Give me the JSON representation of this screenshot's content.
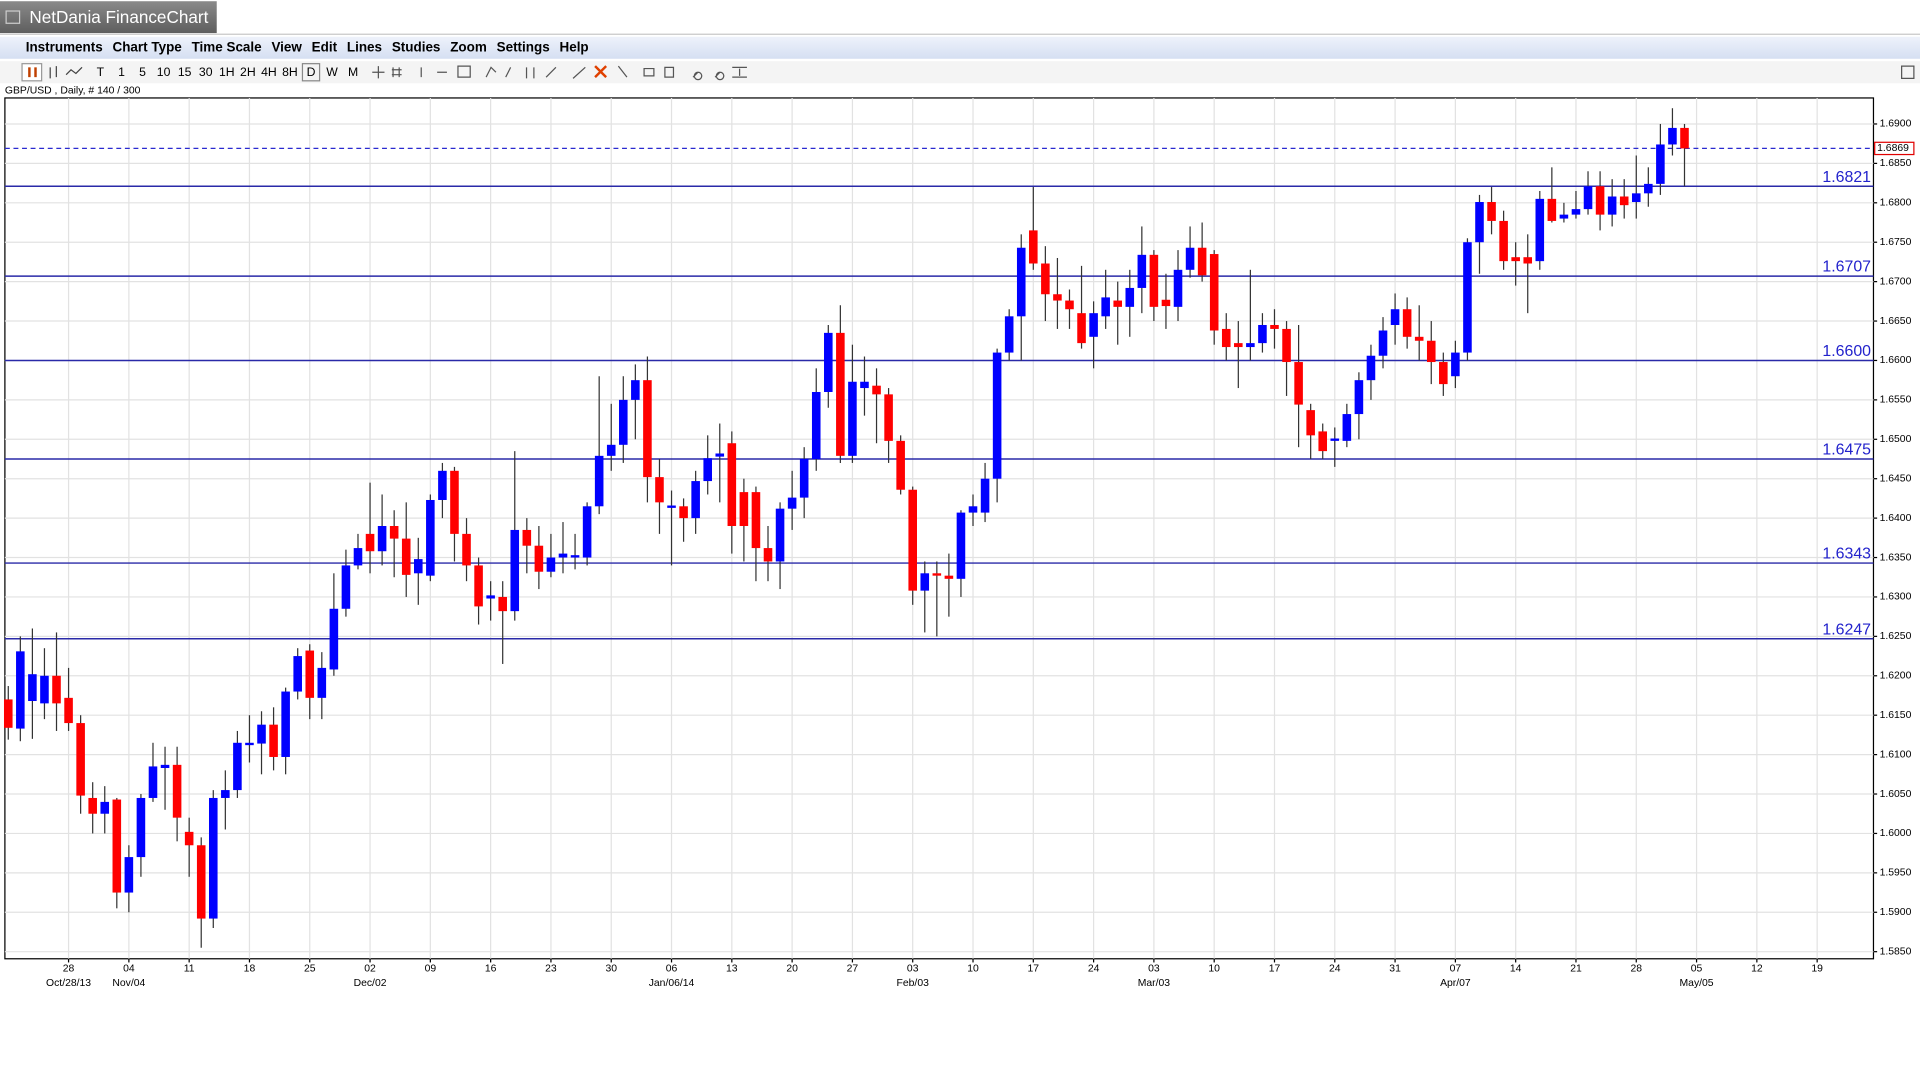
{
  "window_title": "NetDania FinanceChart",
  "menu": [
    "Instruments",
    "Chart Type",
    "Time Scale",
    "View",
    "Edit",
    "Lines",
    "Studies",
    "Zoom",
    "Settings",
    "Help"
  ],
  "timeframes": [
    "T",
    "1",
    "5",
    "10",
    "15",
    "30",
    "1H",
    "2H",
    "4H",
    "8H",
    "D",
    "W",
    "M"
  ],
  "chart_data": {
    "type": "candlestick",
    "title": "GBP/USD , Daily, # 140 / 300",
    "up_color": "#0000ff",
    "down_color": "#ff0000",
    "grid": true,
    "xlim": [
      -0.28,
      154.67
    ],
    "xticks": [
      {
        "value": 5,
        "label": "28"
      },
      {
        "value": 10,
        "label": "04"
      },
      {
        "value": 15,
        "label": "11"
      },
      {
        "value": 20,
        "label": "18"
      },
      {
        "value": 25,
        "label": "25"
      },
      {
        "value": 30,
        "label": "02"
      },
      {
        "value": 35,
        "label": "09"
      },
      {
        "value": 40,
        "label": "16"
      },
      {
        "value": 45,
        "label": "23"
      },
      {
        "value": 50,
        "label": "30"
      },
      {
        "value": 55,
        "label": "06"
      },
      {
        "value": 60,
        "label": "13"
      },
      {
        "value": 65,
        "label": "20"
      },
      {
        "value": 70,
        "label": "27"
      },
      {
        "value": 75,
        "label": "03"
      },
      {
        "value": 80,
        "label": "10"
      },
      {
        "value": 85,
        "label": "17"
      },
      {
        "value": 90,
        "label": "24"
      },
      {
        "value": 95,
        "label": "03"
      },
      {
        "value": 100,
        "label": "10"
      },
      {
        "value": 105,
        "label": "17"
      },
      {
        "value": 110,
        "label": "24"
      },
      {
        "value": 115,
        "label": "31"
      },
      {
        "value": 120,
        "label": "07"
      },
      {
        "value": 125,
        "label": "14"
      },
      {
        "value": 130,
        "label": "21"
      },
      {
        "value": 135,
        "label": "28"
      },
      {
        "value": 140,
        "label": "05"
      },
      {
        "value": 145,
        "label": "12"
      },
      {
        "value": 150,
        "label": "19"
      }
    ],
    "xticks_secondary": [
      {
        "value": 5,
        "label": "Oct/28/13"
      },
      {
        "value": 10,
        "label": "Nov/04"
      },
      {
        "value": 30,
        "label": "Dec/02"
      },
      {
        "value": 55,
        "label": "Jan/06/14"
      },
      {
        "value": 75,
        "label": "Feb/03"
      },
      {
        "value": 95,
        "label": "Mar/03"
      },
      {
        "value": 120,
        "label": "Apr/07"
      },
      {
        "value": 140,
        "label": "May/05"
      }
    ],
    "ylim": [
      1.5841,
      1.6933
    ],
    "yticks": [
      {
        "value": 1.585,
        "label": "1.5850"
      },
      {
        "value": 1.59,
        "label": "1.5900"
      },
      {
        "value": 1.595,
        "label": "1.5950"
      },
      {
        "value": 1.6,
        "label": "1.6000"
      },
      {
        "value": 1.605,
        "label": "1.6050"
      },
      {
        "value": 1.61,
        "label": "1.6100"
      },
      {
        "value": 1.615,
        "label": "1.6150"
      },
      {
        "value": 1.62,
        "label": "1.6200"
      },
      {
        "value": 1.625,
        "label": "1.6250"
      },
      {
        "value": 1.63,
        "label": "1.6300"
      },
      {
        "value": 1.635,
        "label": "1.6350"
      },
      {
        "value": 1.64,
        "label": "1.6400"
      },
      {
        "value": 1.645,
        "label": "1.6450"
      },
      {
        "value": 1.65,
        "label": "1.6500"
      },
      {
        "value": 1.655,
        "label": "1.6550"
      },
      {
        "value": 1.66,
        "label": "1.6600"
      },
      {
        "value": 1.665,
        "label": "1.6650"
      },
      {
        "value": 1.67,
        "label": "1.6700"
      },
      {
        "value": 1.675,
        "label": "1.6750"
      },
      {
        "value": 1.68,
        "label": "1.6800"
      },
      {
        "value": 1.685,
        "label": "1.6850"
      },
      {
        "value": 1.69,
        "label": "1.6900"
      }
    ],
    "hlines": [
      {
        "value": 1.6821,
        "label": "1.6821"
      },
      {
        "value": 1.6707,
        "label": "1.6707"
      },
      {
        "value": 1.66,
        "label": "1.6600"
      },
      {
        "value": 1.6475,
        "label": "1.6475"
      },
      {
        "value": 1.6343,
        "label": "1.6343"
      },
      {
        "value": 1.6247,
        "label": "1.6247"
      }
    ],
    "current": {
      "value": 1.6869,
      "label": "1.6869"
    },
    "open": [
      1.617,
      1.6133,
      1.6168,
      1.6165,
      1.62,
      1.6172,
      1.614,
      1.6045,
      1.6025,
      1.6043,
      1.5925,
      1.597,
      1.6045,
      1.6083,
      1.6087,
      1.6002,
      1.5985,
      1.5892,
      1.6045,
      1.6055,
      1.6112,
      1.6114,
      1.6138,
      1.6097,
      1.618,
      1.6232,
      1.6172,
      1.6208,
      1.6285,
      1.634,
      1.638,
      1.6358,
      1.639,
      1.6374,
      1.633,
      1.6327,
      1.6423,
      1.646,
      1.638,
      1.634,
      1.6298,
      1.63,
      1.6282,
      1.6385,
      1.6365,
      1.6332,
      1.635,
      1.635,
      1.635,
      1.6415,
      1.6479,
      1.6493,
      1.655,
      1.6575,
      1.6452,
      1.6413,
      1.6415,
      1.64,
      1.6447,
      1.6478,
      1.6495,
      1.6433,
      1.6433,
      1.6362,
      1.6345,
      1.6412,
      1.6426,
      1.6475,
      1.656,
      1.6635,
      1.6479,
      1.6565,
      1.6568,
      1.6557,
      1.6498,
      1.6436,
      1.6308,
      1.633,
      1.6327,
      1.6323,
      1.6407,
      1.6407,
      1.645,
      1.661,
      1.6656,
      1.6765,
      1.6723,
      1.6684,
      1.6676,
      1.666,
      1.663,
      1.6656,
      1.6676,
      1.6668,
      1.6692,
      1.6734,
      1.6677,
      1.6668,
      1.6715,
      1.6743,
      1.6735,
      1.664,
      1.6622,
      1.6617,
      1.6622,
      1.6645,
      1.664,
      1.6598,
      1.6537,
      1.651,
      1.6498,
      1.6498,
      1.6532,
      1.6575,
      1.6606,
      1.6645,
      1.6665,
      1.663,
      1.6625,
      1.6598,
      1.658,
      1.661,
      1.675,
      1.6801,
      1.6777,
      1.6731,
      1.6731,
      1.6726,
      1.6805,
      1.678,
      1.6785,
      1.6792,
      1.6821,
      1.6785,
      1.6808,
      1.6801,
      1.6812,
      1.6824,
      1.6874,
      1.6895
    ],
    "high": [
      1.6187,
      1.625,
      1.626,
      1.6235,
      1.6255,
      1.621,
      1.615,
      1.6065,
      1.606,
      1.6045,
      1.5985,
      1.605,
      1.6115,
      1.611,
      1.611,
      1.602,
      1.5995,
      1.6055,
      1.608,
      1.613,
      1.615,
      1.6155,
      1.616,
      1.6185,
      1.6235,
      1.624,
      1.623,
      1.633,
      1.636,
      1.638,
      1.6445,
      1.643,
      1.641,
      1.642,
      1.6375,
      1.643,
      1.647,
      1.6465,
      1.64,
      1.635,
      1.632,
      1.632,
      1.6485,
      1.64,
      1.639,
      1.638,
      1.6395,
      1.638,
      1.642,
      1.658,
      1.6545,
      1.658,
      1.6595,
      1.6605,
      1.6475,
      1.6435,
      1.6425,
      1.646,
      1.6505,
      1.652,
      1.651,
      1.645,
      1.644,
      1.639,
      1.642,
      1.646,
      1.649,
      1.659,
      1.6645,
      1.667,
      1.662,
      1.6605,
      1.659,
      1.6565,
      1.6505,
      1.644,
      1.6345,
      1.6345,
      1.6355,
      1.641,
      1.643,
      1.647,
      1.6615,
      1.6665,
      1.676,
      1.682,
      1.6745,
      1.673,
      1.669,
      1.672,
      1.6675,
      1.6715,
      1.67,
      1.6715,
      1.677,
      1.674,
      1.671,
      1.674,
      1.677,
      1.6775,
      1.674,
      1.666,
      1.665,
      1.6715,
      1.666,
      1.6665,
      1.665,
      1.6645,
      1.6545,
      1.652,
      1.6515,
      1.6545,
      1.6585,
      1.662,
      1.6655,
      1.6685,
      1.668,
      1.667,
      1.665,
      1.661,
      1.6625,
      1.6755,
      1.681,
      1.682,
      1.679,
      1.675,
      1.676,
      1.6815,
      1.6845,
      1.68,
      1.6815,
      1.684,
      1.684,
      1.683,
      1.683,
      1.686,
      1.6845,
      1.69,
      1.692,
      1.69
    ],
    "low": [
      1.6119,
      1.6117,
      1.612,
      1.6145,
      1.613,
      1.613,
      1.6025,
      1.6,
      1.6,
      1.5905,
      1.59,
      1.5945,
      1.604,
      1.603,
      1.599,
      1.5945,
      1.5855,
      1.588,
      1.6005,
      1.6045,
      1.609,
      1.6075,
      1.608,
      1.6075,
      1.617,
      1.6145,
      1.6145,
      1.62,
      1.6275,
      1.6335,
      1.633,
      1.634,
      1.6325,
      1.63,
      1.629,
      1.632,
      1.64,
      1.6345,
      1.632,
      1.6265,
      1.627,
      1.6215,
      1.627,
      1.633,
      1.631,
      1.6325,
      1.633,
      1.6335,
      1.634,
      1.6405,
      1.646,
      1.647,
      1.65,
      1.642,
      1.638,
      1.634,
      1.637,
      1.638,
      1.643,
      1.642,
      1.6355,
      1.6345,
      1.632,
      1.632,
      1.631,
      1.6385,
      1.64,
      1.646,
      1.654,
      1.647,
      1.647,
      1.653,
      1.6495,
      1.647,
      1.643,
      1.629,
      1.6255,
      1.625,
      1.6275,
      1.63,
      1.639,
      1.6395,
      1.642,
      1.66,
      1.66,
      1.6715,
      1.665,
      1.664,
      1.664,
      1.6615,
      1.659,
      1.664,
      1.662,
      1.663,
      1.666,
      1.665,
      1.664,
      1.665,
      1.6705,
      1.67,
      1.662,
      1.66,
      1.6565,
      1.66,
      1.661,
      1.6615,
      1.6555,
      1.649,
      1.6475,
      1.6475,
      1.6465,
      1.649,
      1.65,
      1.655,
      1.659,
      1.662,
      1.6615,
      1.66,
      1.657,
      1.6555,
      1.6565,
      1.66,
      1.671,
      1.676,
      1.6715,
      1.6695,
      1.666,
      1.6715,
      1.6775,
      1.6775,
      1.678,
      1.6785,
      1.6765,
      1.677,
      1.678,
      1.678,
      1.6795,
      1.681,
      1.686,
      1.6821
    ],
    "close": [
      1.6134,
      1.6231,
      1.6202,
      1.62,
      1.6165,
      1.614,
      1.6048,
      1.6025,
      1.604,
      1.5925,
      1.597,
      1.6045,
      1.6085,
      1.6087,
      1.602,
      1.5985,
      1.5892,
      1.6045,
      1.6055,
      1.6115,
      1.6115,
      1.6138,
      1.6097,
      1.618,
      1.6225,
      1.6172,
      1.621,
      1.6285,
      1.634,
      1.6362,
      1.6358,
      1.639,
      1.6374,
      1.6328,
      1.6348,
      1.6423,
      1.646,
      1.638,
      1.634,
      1.6288,
      1.6302,
      1.6282,
      1.6385,
      1.6365,
      1.6332,
      1.635,
      1.6355,
      1.6353,
      1.6415,
      1.6479,
      1.6493,
      1.655,
      1.6575,
      1.6452,
      1.642,
      1.6416,
      1.64,
      1.6447,
      1.6476,
      1.6482,
      1.639,
      1.639,
      1.6362,
      1.6345,
      1.6412,
      1.6426,
      1.6475,
      1.656,
      1.6635,
      1.6479,
      1.6573,
      1.6573,
      1.6557,
      1.6498,
      1.6436,
      1.6308,
      1.633,
      1.6327,
      1.6323,
      1.6407,
      1.6415,
      1.645,
      1.661,
      1.6656,
      1.6743,
      1.6723,
      1.6684,
      1.6676,
      1.6665,
      1.6622,
      1.666,
      1.668,
      1.6668,
      1.6692,
      1.6734,
      1.6668,
      1.6669,
      1.6715,
      1.6743,
      1.6708,
      1.6638,
      1.6617,
      1.6617,
      1.6622,
      1.6645,
      1.664,
      1.6598,
      1.6544,
      1.6505,
      1.6485,
      1.6501,
      1.6532,
      1.6575,
      1.6606,
      1.6638,
      1.6665,
      1.663,
      1.6625,
      1.6598,
      1.657,
      1.661,
      1.675,
      1.6801,
      1.6777,
      1.6726,
      1.6726,
      1.6723,
      1.6805,
      1.6777,
      1.6785,
      1.6792,
      1.6821,
      1.6785,
      1.6808,
      1.6797,
      1.6812,
      1.6824,
      1.6874,
      1.6895,
      1.6869
    ]
  }
}
